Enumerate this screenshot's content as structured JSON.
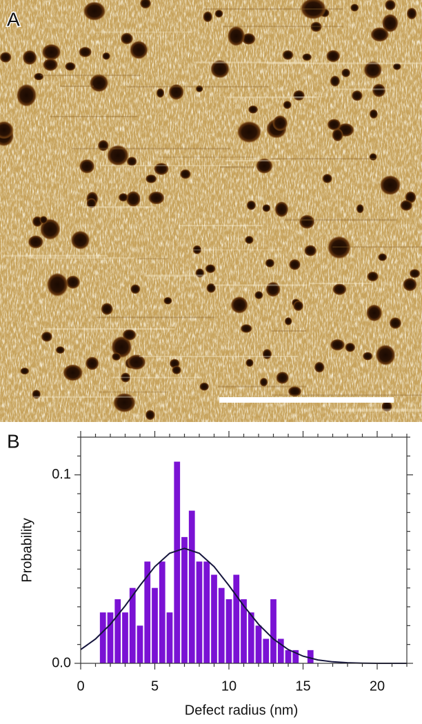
{
  "panel_a": {
    "label": "A"
  },
  "chart_data": {
    "type": "histogram",
    "panel_label": "B",
    "x_label": "Defect radius (nm)",
    "y_label": "Probability",
    "bins": [
      1.25,
      1.75,
      2.25,
      2.75,
      3.25,
      3.75,
      4.25,
      4.75,
      5.25,
      5.75,
      6.25,
      6.75,
      7.25,
      7.75,
      8.25,
      8.75,
      9.25,
      9.75,
      10.25,
      10.75,
      11.25,
      11.75,
      12.25,
      12.75,
      13.25,
      13.75,
      14.25,
      14.75,
      15.25,
      15.75
    ],
    "values": [
      0.027,
      0.027,
      0.034,
      0.027,
      0.04,
      0.02,
      0.054,
      0.04,
      0.054,
      0.027,
      0.107,
      0.067,
      0.081,
      0.054,
      0.054,
      0.047,
      0.04,
      0.034,
      0.047,
      0.034,
      0.027,
      0.02,
      0.013,
      0.034,
      0.013,
      0.007,
      0.007,
      0,
      0.007
    ],
    "color": "#7a12d4",
    "fit": {
      "color": "#14143c",
      "x": [
        0,
        1,
        2,
        3,
        4,
        5,
        6,
        7,
        8,
        9,
        10,
        11,
        12,
        13,
        14,
        15,
        16,
        17,
        18,
        19,
        20,
        21,
        22
      ],
      "values": [
        0.0073,
        0.0129,
        0.0207,
        0.0305,
        0.0413,
        0.0513,
        0.0584,
        0.061,
        0.0584,
        0.0513,
        0.0413,
        0.0305,
        0.0207,
        0.0129,
        0.0073,
        0.0038,
        0.0018,
        0.0008,
        0.0003,
        0.0001,
        0,
        0,
        0
      ]
    },
    "xlim": [
      0,
      22
    ],
    "ylim": [
      0,
      0.12
    ],
    "xticks": [
      0,
      5,
      10,
      15,
      20
    ],
    "xminorticks": [
      1,
      2,
      3,
      4,
      6,
      7,
      8,
      9,
      11,
      12,
      13,
      14,
      16,
      17,
      18,
      19,
      21,
      22
    ],
    "yticks": [
      {
        "value": 0,
        "label": "0.0"
      },
      0.1
    ],
    "yminorticks": [
      0.01,
      0.02,
      0.03,
      0.04,
      0.05,
      0.06,
      0.07,
      0.08,
      0.09,
      0.11,
      0.12
    ]
  }
}
